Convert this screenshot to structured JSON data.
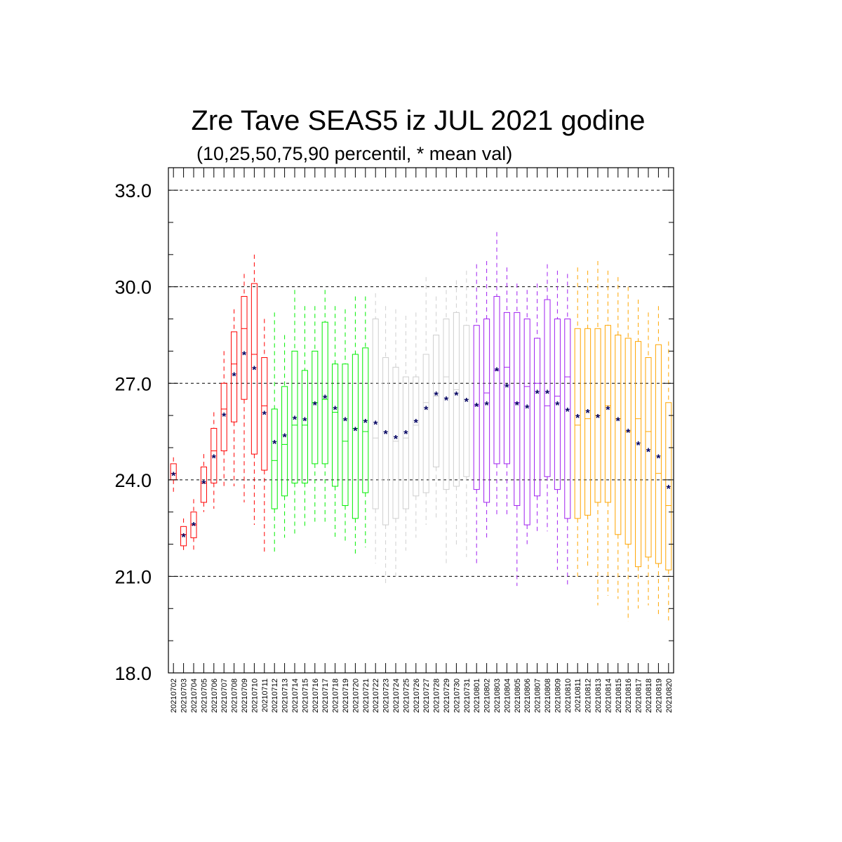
{
  "chart_data": {
    "type": "boxplot",
    "title": "Zre Tave SEAS5 iz JUL 2021 godine",
    "subtitle": "(10,25,50,75,90 percentil, * mean val)",
    "ylim": [
      18.0,
      33.7
    ],
    "yticks": [
      "18.0",
      "21.0",
      "24.0",
      "27.0",
      "30.0",
      "33.0"
    ],
    "ytick_values": [
      18,
      21,
      24,
      27,
      30,
      33
    ],
    "grid": "horizontal dashed at major ticks",
    "colors": {
      "red": "#ff0000",
      "green": "#00ee00",
      "gray": "#cfcfcf",
      "purple": "#a020f0",
      "orange": "#ffa500",
      "mean": "#000060"
    },
    "categories": [
      "20210702",
      "20210703",
      "20210704",
      "20210705",
      "20210706",
      "20210707",
      "20210708",
      "20210709",
      "20210710",
      "20210711",
      "20210712",
      "20210713",
      "20210714",
      "20210715",
      "20210716",
      "20210717",
      "20210718",
      "20210719",
      "20210720",
      "20210721",
      "20210722",
      "20210723",
      "20210724",
      "20210725",
      "20210726",
      "20210727",
      "20210728",
      "20210729",
      "20210730",
      "20210731",
      "20210801",
      "20210802",
      "20210803",
      "20210804",
      "20210805",
      "20210806",
      "20210807",
      "20210808",
      "20210809",
      "20210810",
      "20210811",
      "20210812",
      "20210813",
      "20210814",
      "20210815",
      "20210816",
      "20210817",
      "20210818",
      "20210819",
      "20210820"
    ],
    "boxes": [
      {
        "p10": 23.6,
        "p25": 24.0,
        "p50": 24.2,
        "p75": 24.5,
        "p90": 24.7,
        "mean": 24.2,
        "color": "red"
      },
      {
        "p10": 21.8,
        "p25": 21.95,
        "p50": 22.3,
        "p75": 22.55,
        "p90": 22.8,
        "mean": 22.3,
        "color": "red"
      },
      {
        "p10": 21.8,
        "p25": 22.2,
        "p50": 22.6,
        "p75": 23.0,
        "p90": 23.4,
        "mean": 22.65,
        "color": "red"
      },
      {
        "p10": 23.0,
        "p25": 23.3,
        "p50": 23.9,
        "p75": 24.4,
        "p90": 24.8,
        "mean": 23.95,
        "color": "red"
      },
      {
        "p10": 23.1,
        "p25": 23.9,
        "p50": 24.9,
        "p75": 25.6,
        "p90": 26.1,
        "mean": 24.75,
        "color": "red"
      },
      {
        "p10": 23.7,
        "p25": 24.9,
        "p50": 26.2,
        "p75": 27.0,
        "p90": 28.0,
        "mean": 26.05,
        "color": "red"
      },
      {
        "p10": 23.8,
        "p25": 25.8,
        "p50": 27.6,
        "p75": 28.6,
        "p90": 29.3,
        "mean": 27.3,
        "color": "red"
      },
      {
        "p10": 23.3,
        "p25": 26.5,
        "p50": 28.7,
        "p75": 29.7,
        "p90": 30.4,
        "mean": 27.95,
        "color": "red"
      },
      {
        "p10": 22.6,
        "p25": 24.8,
        "p50": 27.9,
        "p75": 30.1,
        "p90": 31.0,
        "mean": 27.5,
        "color": "red"
      },
      {
        "p10": 21.7,
        "p25": 24.3,
        "p50": 26.3,
        "p75": 27.8,
        "p90": 29.0,
        "mean": 26.1,
        "color": "red"
      },
      {
        "p10": 21.7,
        "p25": 23.1,
        "p50": 24.6,
        "p75": 26.2,
        "p90": 29.2,
        "mean": 25.2,
        "color": "green"
      },
      {
        "p10": 22.2,
        "p25": 23.5,
        "p50": 25.1,
        "p75": 26.9,
        "p90": 28.5,
        "mean": 25.4,
        "color": "green"
      },
      {
        "p10": 22.3,
        "p25": 23.9,
        "p50": 25.7,
        "p75": 28.0,
        "p90": 29.9,
        "mean": 25.95,
        "color": "green"
      },
      {
        "p10": 22.5,
        "p25": 23.9,
        "p50": 25.7,
        "p75": 27.4,
        "p90": 29.4,
        "mean": 25.9,
        "color": "green"
      },
      {
        "p10": 22.7,
        "p25": 24.5,
        "p50": 26.4,
        "p75": 28.0,
        "p90": 29.4,
        "mean": 26.4,
        "color": "green"
      },
      {
        "p10": 22.7,
        "p25": 24.5,
        "p50": 26.5,
        "p75": 28.9,
        "p90": 29.9,
        "mean": 26.6,
        "color": "green"
      },
      {
        "p10": 22.2,
        "p25": 23.8,
        "p50": 26.1,
        "p75": 27.6,
        "p90": 29.4,
        "mean": 26.25,
        "color": "green"
      },
      {
        "p10": 22.1,
        "p25": 23.2,
        "p50": 25.2,
        "p75": 27.6,
        "p90": 29.3,
        "mean": 25.9,
        "color": "green"
      },
      {
        "p10": 21.6,
        "p25": 22.8,
        "p50": 25.6,
        "p75": 27.9,
        "p90": 29.7,
        "mean": 25.6,
        "color": "green"
      },
      {
        "p10": 21.9,
        "p25": 23.6,
        "p50": 25.5,
        "p75": 28.1,
        "p90": 29.7,
        "mean": 25.85,
        "color": "green"
      },
      {
        "p10": 21.4,
        "p25": 23.1,
        "p50": 25.3,
        "p75": 29.0,
        "p90": 29.8,
        "mean": 25.8,
        "color": "gray"
      },
      {
        "p10": 20.7,
        "p25": 22.6,
        "p50": 25.5,
        "p75": 27.8,
        "p90": 29.4,
        "mean": 25.5,
        "color": "gray"
      },
      {
        "p10": 20.9,
        "p25": 22.8,
        "p50": 25.2,
        "p75": 27.5,
        "p90": 29.3,
        "mean": 25.35,
        "color": "gray"
      },
      {
        "p10": 21.8,
        "p25": 23.1,
        "p50": 25.3,
        "p75": 27.2,
        "p90": 29.1,
        "mean": 25.5,
        "color": "gray"
      },
      {
        "p10": 22.2,
        "p25": 23.5,
        "p50": 25.7,
        "p75": 27.2,
        "p90": 29.2,
        "mean": 25.85,
        "color": "gray"
      },
      {
        "p10": 22.6,
        "p25": 23.6,
        "p50": 26.4,
        "p75": 27.9,
        "p90": 30.3,
        "mean": 26.25,
        "color": "gray"
      },
      {
        "p10": 22.8,
        "p25": 24.4,
        "p50": 26.6,
        "p75": 28.5,
        "p90": 29.7,
        "mean": 26.7,
        "color": "gray"
      },
      {
        "p10": 21.3,
        "p25": 23.7,
        "p50": 27.2,
        "p75": 29.0,
        "p90": 29.9,
        "mean": 26.55,
        "color": "gray"
      },
      {
        "p10": 21.9,
        "p25": 23.8,
        "p50": 26.8,
        "p75": 29.2,
        "p90": 30.2,
        "mean": 26.7,
        "color": "gray"
      },
      {
        "p10": 21.6,
        "p25": 24.1,
        "p50": 26.5,
        "p75": 28.8,
        "p90": 30.5,
        "mean": 26.5,
        "color": "gray"
      },
      {
        "p10": 21.3,
        "p25": 23.7,
        "p50": 26.3,
        "p75": 28.8,
        "p90": 30.7,
        "mean": 26.35,
        "color": "purple"
      },
      {
        "p10": 22.1,
        "p25": 23.3,
        "p50": 26.7,
        "p75": 29.0,
        "p90": 30.8,
        "mean": 26.4,
        "color": "purple"
      },
      {
        "p10": 22.9,
        "p25": 24.5,
        "p50": 27.4,
        "p75": 29.7,
        "p90": 31.7,
        "mean": 27.45,
        "color": "purple"
      },
      {
        "p10": 22.9,
        "p25": 24.5,
        "p50": 27.5,
        "p75": 29.2,
        "p90": 30.6,
        "mean": 26.95,
        "color": "purple"
      },
      {
        "p10": 20.7,
        "p25": 23.2,
        "p50": 26.4,
        "p75": 29.2,
        "p90": 30.1,
        "mean": 26.4,
        "color": "purple"
      },
      {
        "p10": 22.0,
        "p25": 22.6,
        "p50": 26.9,
        "p75": 29.0,
        "p90": 29.9,
        "mean": 26.3,
        "color": "purple"
      },
      {
        "p10": 22.3,
        "p25": 23.5,
        "p50": 27.0,
        "p75": 28.4,
        "p90": 30.1,
        "mean": 26.75,
        "color": "purple"
      },
      {
        "p10": 22.4,
        "p25": 24.1,
        "p50": 26.3,
        "p75": 29.6,
        "p90": 30.7,
        "mean": 26.75,
        "color": "purple"
      },
      {
        "p10": 21.2,
        "p25": 23.7,
        "p50": 26.6,
        "p75": 29.0,
        "p90": 30.5,
        "mean": 26.4,
        "color": "purple"
      },
      {
        "p10": 20.7,
        "p25": 22.8,
        "p50": 27.2,
        "p75": 29.0,
        "p90": 30.4,
        "mean": 26.2,
        "color": "purple"
      },
      {
        "p10": 20.9,
        "p25": 22.8,
        "p50": 25.7,
        "p75": 28.7,
        "p90": 30.6,
        "mean": 26.0,
        "color": "orange"
      },
      {
        "p10": 21.3,
        "p25": 22.9,
        "p50": 25.9,
        "p75": 28.7,
        "p90": 30.5,
        "mean": 26.15,
        "color": "orange"
      },
      {
        "p10": 20.1,
        "p25": 23.3,
        "p50": 26.0,
        "p75": 28.7,
        "p90": 30.8,
        "mean": 26.0,
        "color": "orange"
      },
      {
        "p10": 20.4,
        "p25": 23.3,
        "p50": 26.3,
        "p75": 28.8,
        "p90": 30.5,
        "mean": 26.25,
        "color": "orange"
      },
      {
        "p10": 20.3,
        "p25": 22.3,
        "p50": 25.9,
        "p75": 28.5,
        "p90": 30.3,
        "mean": 25.9,
        "color": "orange"
      },
      {
        "p10": 19.6,
        "p25": 22.0,
        "p50": 25.5,
        "p75": 28.4,
        "p90": 30.0,
        "mean": 25.55,
        "color": "orange"
      },
      {
        "p10": 20.0,
        "p25": 21.3,
        "p50": 25.9,
        "p75": 28.3,
        "p90": 29.6,
        "mean": 25.15,
        "color": "orange"
      },
      {
        "p10": 20.1,
        "p25": 21.6,
        "p50": 25.5,
        "p75": 27.8,
        "p90": 29.2,
        "mean": 24.95,
        "color": "orange"
      },
      {
        "p10": 19.8,
        "p25": 21.4,
        "p50": 24.2,
        "p75": 28.2,
        "p90": 29.4,
        "mean": 24.75,
        "color": "orange"
      },
      {
        "p10": 19.6,
        "p25": 21.2,
        "p50": 23.2,
        "p75": 26.4,
        "p90": 28.3,
        "mean": 23.8,
        "color": "orange"
      }
    ]
  }
}
